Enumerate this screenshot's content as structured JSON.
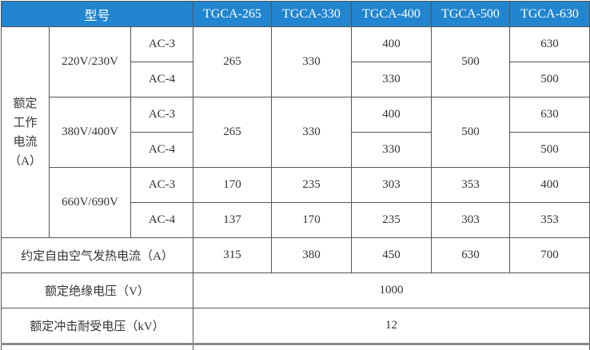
{
  "header": {
    "model_label": "型号",
    "models": [
      "TGCA-265",
      "TGCA-330",
      "TGCA-400",
      "TGCA-500",
      "TGCA-630"
    ],
    "color": "#2185d0"
  },
  "rated_current": {
    "label_lines": [
      "额定",
      "工作",
      "电流",
      "（A）"
    ],
    "groups": [
      {
        "voltage": "220V/230V",
        "ac3": "AC-3",
        "ac4": "AC-4",
        "merged": [
          "265",
          "330"
        ],
        "ac3_vals": [
          "400",
          "630"
        ],
        "ac4_vals": [
          "330",
          "500"
        ],
        "tgca500": "500"
      },
      {
        "voltage": "380V/400V",
        "ac3": "AC-3",
        "ac4": "AC-4",
        "merged": [
          "265",
          "330"
        ],
        "ac3_vals": [
          "400",
          "630"
        ],
        "ac4_vals": [
          "330",
          "500"
        ],
        "tgca500": "500"
      },
      {
        "voltage": "660V/690V",
        "ac3": "AC-3",
        "ac4": "AC-4",
        "ac3_row": [
          "170",
          "235",
          "303",
          "353",
          "400"
        ],
        "ac4_row": [
          "137",
          "170",
          "235",
          "303",
          "353"
        ]
      }
    ]
  },
  "thermal": {
    "label": "约定自由空气发热电流（A）",
    "values": [
      "315",
      "380",
      "450",
      "630",
      "700"
    ]
  },
  "insulation": {
    "label": "额定绝缘电压（V）",
    "value": "1000"
  },
  "impulse": {
    "label": "额定冲击耐受电压（kV）",
    "value": "12"
  }
}
